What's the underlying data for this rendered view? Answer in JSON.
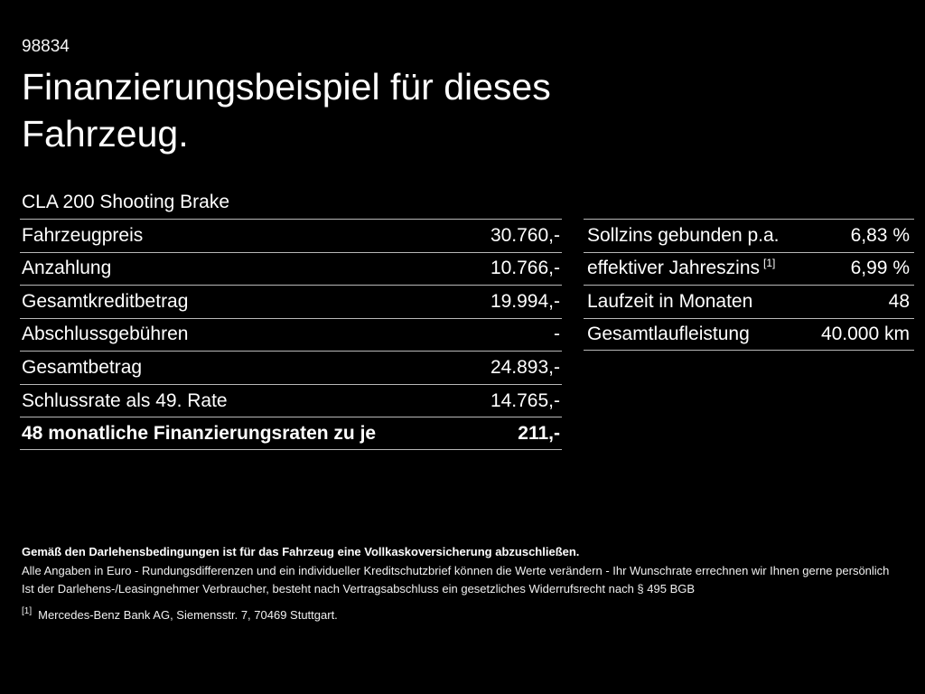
{
  "page": {
    "vehicle_code": "98834",
    "title": "Finanzierungsbeispiel für dieses Fahrzeug.",
    "vehicle_model": "CLA 200 Shooting Brake"
  },
  "colors": {
    "background": "#000000",
    "text": "#ffffff",
    "divider": "#b8b8b8"
  },
  "finance_table": {
    "rows": [
      {
        "label": "Fahrzeugpreis",
        "value": "30.760,-",
        "emphasis": false
      },
      {
        "label": "Anzahlung",
        "value": "10.766,-",
        "emphasis": false
      },
      {
        "label": "Gesamtkreditbetrag",
        "value": "19.994,-",
        "emphasis": false
      },
      {
        "label": "Abschlussgebühren",
        "value": "-",
        "emphasis": false
      },
      {
        "label": "Gesamtbetrag",
        "value": "24.893,-",
        "emphasis": false
      },
      {
        "label": "Schlussrate als 49. Rate",
        "value": "14.765,-",
        "emphasis": false
      },
      {
        "label": "48 monatliche Finanzierungsraten zu je",
        "value": "211,-",
        "emphasis": true
      }
    ]
  },
  "conditions_table": {
    "rows": [
      {
        "label": "Sollzins gebunden p.a.",
        "value": "6,83 %"
      },
      {
        "label": "effektiver Jahreszins",
        "sup": "[1]",
        "value": "6,99 %"
      },
      {
        "label": "Laufzeit in Monaten",
        "value": "48"
      },
      {
        "label": "Gesamtlaufleistung",
        "value": "40.000 km"
      }
    ]
  },
  "footer": {
    "insurance_note": "Gemäß den Darlehensbedingungen ist für das Fahrzeug eine Vollkaskoversicherung abzuschließen.",
    "disclaimer_line1": "Alle Angaben in Euro - Rundungsdifferenzen und ein individueller Kreditschutzbrief können die Werte verändern - Ihr Wunschrate errechnen wir Ihnen gerne persönlich",
    "disclaimer_line2": "Ist der Darlehens-/Leasingnehmer Verbraucher, besteht nach Vertragsabschluss ein gesetzliches Widerrufsrecht nach § 495 BGB",
    "footnote_marker": "[1]",
    "footnote_text": "Mercedes-Benz Bank AG, Siemensstr. 7, 70469 Stuttgart."
  }
}
